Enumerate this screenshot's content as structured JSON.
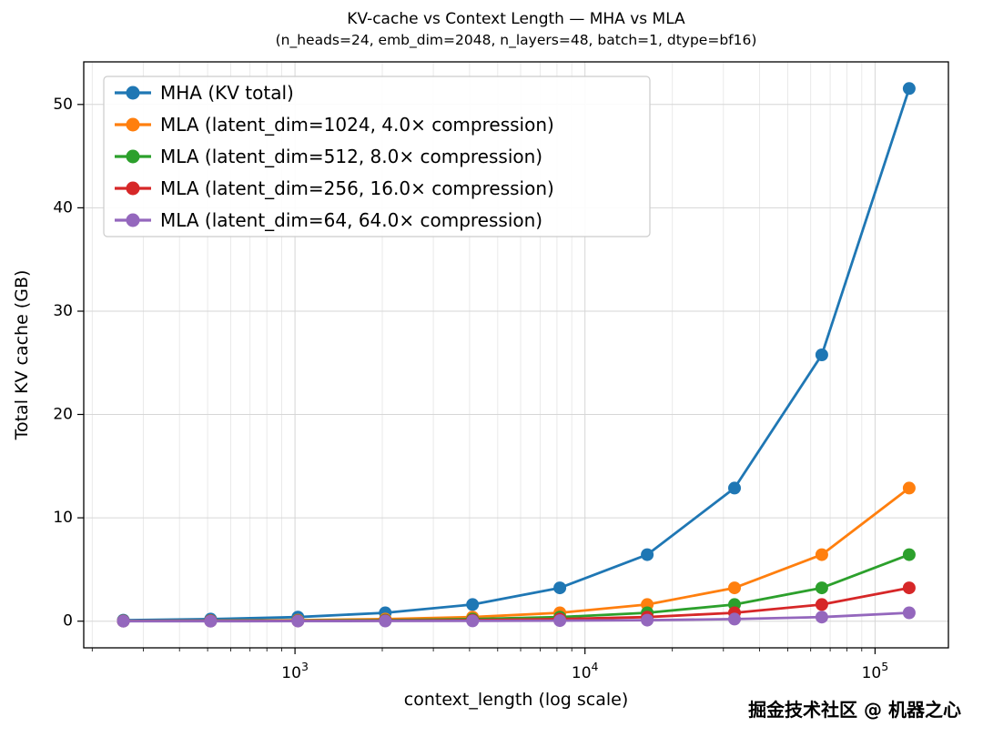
{
  "title": "KV-cache vs Context Length — MHA vs MLA",
  "subtitle": "(n_heads=24, emb_dim=2048, n_layers=48, batch=1, dtype=bf16)",
  "watermark": "掘金技术社区 @ 机器之心",
  "chart_data": {
    "type": "line",
    "x_scale": "log",
    "x": [
      256,
      512,
      1024,
      2048,
      4096,
      8192,
      16384,
      32768,
      65536,
      131072
    ],
    "xlabel": "context_length (log scale)",
    "ylabel": "Total KV cache (GB)",
    "xticks": [
      1000,
      10000,
      100000
    ],
    "xtick_labels": [
      "10^3",
      "10^4",
      "10^5"
    ],
    "yticks": [
      0,
      10,
      20,
      30,
      40,
      50
    ],
    "xlim": [
      187,
      179000
    ],
    "ylim": [
      -2.58,
      54.12
    ],
    "grid": "both",
    "legend_position": "upper left",
    "series": [
      {
        "name": "MHA (KV total)",
        "color": "#1f77b4",
        "values": [
          0.1,
          0.2,
          0.4,
          0.81,
          1.61,
          3.22,
          6.44,
          12.88,
          25.77,
          51.54
        ]
      },
      {
        "name": "MLA (latent_dim=1024, 4.0× compression)",
        "color": "#ff7f0e",
        "values": [
          0.025,
          0.05,
          0.1,
          0.2,
          0.4,
          0.81,
          1.61,
          3.22,
          6.44,
          12.88
        ]
      },
      {
        "name": "MLA (latent_dim=512, 8.0× compression)",
        "color": "#2ca02c",
        "values": [
          0.013,
          0.025,
          0.05,
          0.1,
          0.2,
          0.4,
          0.81,
          1.61,
          3.22,
          6.44
        ]
      },
      {
        "name": "MLA (latent_dim=256, 16.0× compression)",
        "color": "#d62728",
        "values": [
          0.006,
          0.013,
          0.025,
          0.05,
          0.1,
          0.2,
          0.4,
          0.81,
          1.61,
          3.22
        ]
      },
      {
        "name": "MLA (latent_dim=64, 64.0× compression)",
        "color": "#9467bd",
        "values": [
          0.002,
          0.003,
          0.006,
          0.013,
          0.025,
          0.05,
          0.1,
          0.2,
          0.4,
          0.81
        ]
      }
    ]
  }
}
